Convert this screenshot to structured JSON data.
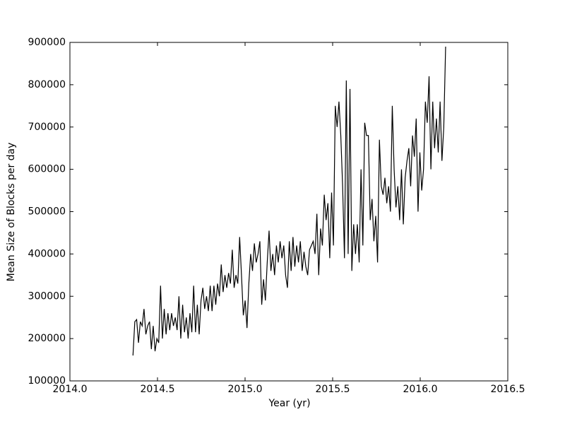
{
  "chart_data": {
    "type": "line",
    "xlabel": "Year (yr)",
    "ylabel": "Mean Size of Blocks per day",
    "color": "#000000",
    "x": [
      2014.36,
      2014.3705,
      2014.381,
      2014.3915,
      2014.402,
      2014.4125,
      2014.423,
      2014.4335,
      2014.444,
      2014.4545,
      2014.465,
      2014.4755,
      2014.486,
      2014.4965,
      2014.507,
      2014.5175,
      2014.528,
      2014.5385,
      2014.549,
      2014.5595,
      2014.57,
      2014.5805,
      2014.591,
      2014.6015,
      2014.612,
      2014.6225,
      2014.633,
      2014.6435,
      2014.654,
      2014.6645,
      2014.675,
      2014.6855,
      2014.696,
      2014.7065,
      2014.717,
      2014.7275,
      2014.738,
      2014.7485,
      2014.759,
      2014.7695,
      2014.78,
      2014.7905,
      2014.801,
      2014.8115,
      2014.822,
      2014.8325,
      2014.843,
      2014.8535,
      2014.864,
      2014.8745,
      2014.885,
      2014.8955,
      2014.906,
      2014.9165,
      2014.927,
      2014.9375,
      2014.948,
      2014.9585,
      2014.969,
      2014.9795,
      2014.99,
      2015.0005,
      2015.011,
      2015.0215,
      2015.032,
      2015.0425,
      2015.053,
      2015.0635,
      2015.074,
      2015.0845,
      2015.095,
      2015.1055,
      2015.116,
      2015.1265,
      2015.137,
      2015.1475,
      2015.158,
      2015.1685,
      2015.179,
      2015.1895,
      2015.2,
      2015.2105,
      2015.221,
      2015.2315,
      2015.242,
      2015.2525,
      2015.263,
      2015.2735,
      2015.284,
      2015.2945,
      2015.305,
      2015.3155,
      2015.326,
      2015.3365,
      2015.347,
      2015.3575,
      2015.368,
      2015.3785,
      2015.389,
      2015.3995,
      2015.41,
      2015.4205,
      2015.431,
      2015.4415,
      2015.452,
      2015.4625,
      2015.473,
      2015.4835,
      2015.494,
      2015.5045,
      2015.515,
      2015.5255,
      2015.536,
      2015.5465,
      2015.557,
      2015.5675,
      2015.578,
      2015.5885,
      2015.599,
      2015.6095,
      2015.62,
      2015.6305,
      2015.641,
      2015.6515,
      2015.662,
      2015.6725,
      2015.683,
      2015.6935,
      2015.704,
      2015.7145,
      2015.725,
      2015.7355,
      2015.746,
      2015.7565,
      2015.767,
      2015.7775,
      2015.788,
      2015.7985,
      2015.809,
      2015.8195,
      2015.83,
      2015.8405,
      2015.851,
      2015.8615,
      2015.872,
      2015.8825,
      2015.893,
      2015.9035,
      2015.914,
      2015.9245,
      2015.935,
      2015.9455,
      2015.956,
      2015.9665,
      2015.977,
      2015.9875,
      2015.998,
      2016.0085,
      2016.019,
      2016.0295,
      2016.04,
      2016.0505,
      2016.061,
      2016.0715,
      2016.082,
      2016.0925,
      2016.103,
      2016.1135,
      2016.124,
      2016.1345,
      2016.145
    ],
    "values": [
      160000,
      240000,
      245000,
      190000,
      240000,
      230000,
      270000,
      210000,
      230000,
      240000,
      175000,
      230000,
      170000,
      200000,
      190000,
      325000,
      200000,
      270000,
      210000,
      260000,
      220000,
      260000,
      230000,
      250000,
      220000,
      300000,
      200000,
      280000,
      215000,
      250000,
      200000,
      260000,
      215000,
      325000,
      215000,
      280000,
      210000,
      290000,
      320000,
      270000,
      300000,
      265000,
      325000,
      265000,
      325000,
      280000,
      330000,
      300000,
      375000,
      310000,
      350000,
      320000,
      355000,
      330000,
      410000,
      320000,
      350000,
      330000,
      440000,
      350000,
      255000,
      290000,
      225000,
      330000,
      400000,
      360000,
      425000,
      380000,
      400000,
      430000,
      280000,
      340000,
      290000,
      380000,
      455000,
      360000,
      400000,
      350000,
      420000,
      380000,
      430000,
      390000,
      420000,
      350000,
      320000,
      430000,
      360000,
      440000,
      370000,
      420000,
      380000,
      430000,
      360000,
      405000,
      370000,
      350000,
      410000,
      420000,
      430000,
      400000,
      495000,
      350000,
      460000,
      420000,
      540000,
      480000,
      520000,
      390000,
      545000,
      420000,
      750000,
      700000,
      760000,
      680000,
      560000,
      390000,
      810000,
      400000,
      790000,
      360000,
      470000,
      400000,
      470000,
      380000,
      600000,
      420000,
      710000,
      680000,
      680000,
      480000,
      530000,
      430000,
      490000,
      380000,
      670000,
      560000,
      540000,
      580000,
      520000,
      560000,
      500000,
      750000,
      600000,
      510000,
      560000,
      480000,
      600000,
      470000,
      580000,
      620000,
      650000,
      560000,
      680000,
      630000,
      720000,
      500000,
      640000,
      550000,
      600000,
      760000,
      710000,
      820000,
      600000,
      760000,
      650000,
      720000,
      640000,
      760000,
      620000,
      700000,
      890000
    ],
    "xlim": [
      2014.0,
      2016.5
    ],
    "xticks": [
      {
        "value": 2014.0,
        "label": "2014.0"
      },
      {
        "value": 2014.5,
        "label": "2014.5"
      },
      {
        "value": 2015.0,
        "label": "2015.0"
      },
      {
        "value": 2015.5,
        "label": "2015.5"
      },
      {
        "value": 2016.0,
        "label": "2016.0"
      },
      {
        "value": 2016.5,
        "label": "2016.5"
      }
    ],
    "ylim": [
      100000,
      900000
    ],
    "yticks": [
      100000,
      200000,
      300000,
      400000,
      500000,
      600000,
      700000,
      800000,
      900000
    ],
    "grid": false
  }
}
